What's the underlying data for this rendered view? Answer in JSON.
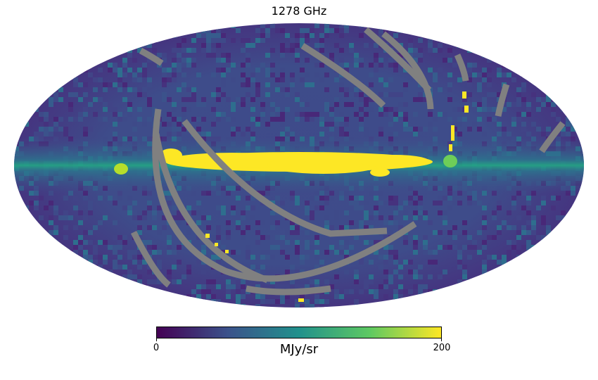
{
  "chart_data": {
    "type": "heatmap",
    "projection": "mollweide",
    "title": "1278 GHz",
    "colormap": "viridis",
    "bad_color": "#808080",
    "colorbar": {
      "min_label": "0",
      "max_label": "200",
      "unit": "MJy/sr",
      "range": [
        0,
        200
      ],
      "colors": [
        "#440154",
        "#3b528b",
        "#21918c",
        "#5ec962",
        "#fde725"
      ]
    }
  }
}
